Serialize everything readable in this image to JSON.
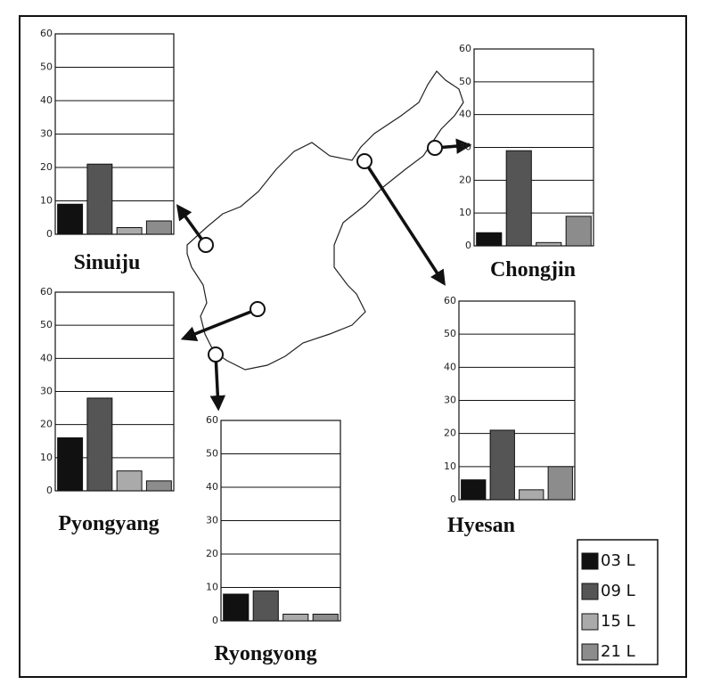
{
  "legend": [
    {
      "name": "03 L",
      "color": "#111111"
    },
    {
      "name": "09 L",
      "color": "#555555"
    },
    {
      "name": "15 L",
      "color": "#aaaaaa"
    },
    {
      "name": "21 L",
      "color": "#8c8c8c"
    }
  ],
  "chart_data": [
    {
      "type": "bar",
      "title": "Sinuiju",
      "values": [
        9,
        21,
        2,
        4
      ],
      "ylim": [
        0,
        60
      ],
      "yticks": [
        0,
        10,
        20,
        30,
        40,
        50,
        60
      ],
      "grid": true
    },
    {
      "type": "bar",
      "title": "Chongjin",
      "values": [
        4,
        29,
        1,
        9
      ],
      "ylim": [
        0,
        60
      ],
      "yticks": [
        0,
        10,
        20,
        30,
        40,
        50,
        60
      ],
      "grid": true
    },
    {
      "type": "bar",
      "title": "Pyongyang",
      "values": [
        16,
        28,
        6,
        3
      ],
      "ylim": [
        0,
        60
      ],
      "yticks": [
        0,
        10,
        20,
        30,
        40,
        50,
        60
      ],
      "grid": true
    },
    {
      "type": "bar",
      "title": "Hyesan",
      "values": [
        6,
        21,
        3,
        10
      ],
      "ylim": [
        0,
        60
      ],
      "yticks": [
        0,
        10,
        20,
        30,
        40,
        50,
        60
      ],
      "grid": true
    },
    {
      "type": "bar",
      "title": "Ryongyong",
      "values": [
        8,
        9,
        2,
        2
      ],
      "ylim": [
        0,
        60
      ],
      "yticks": [
        0,
        10,
        20,
        30,
        40,
        50,
        60
      ],
      "grid": true
    }
  ]
}
